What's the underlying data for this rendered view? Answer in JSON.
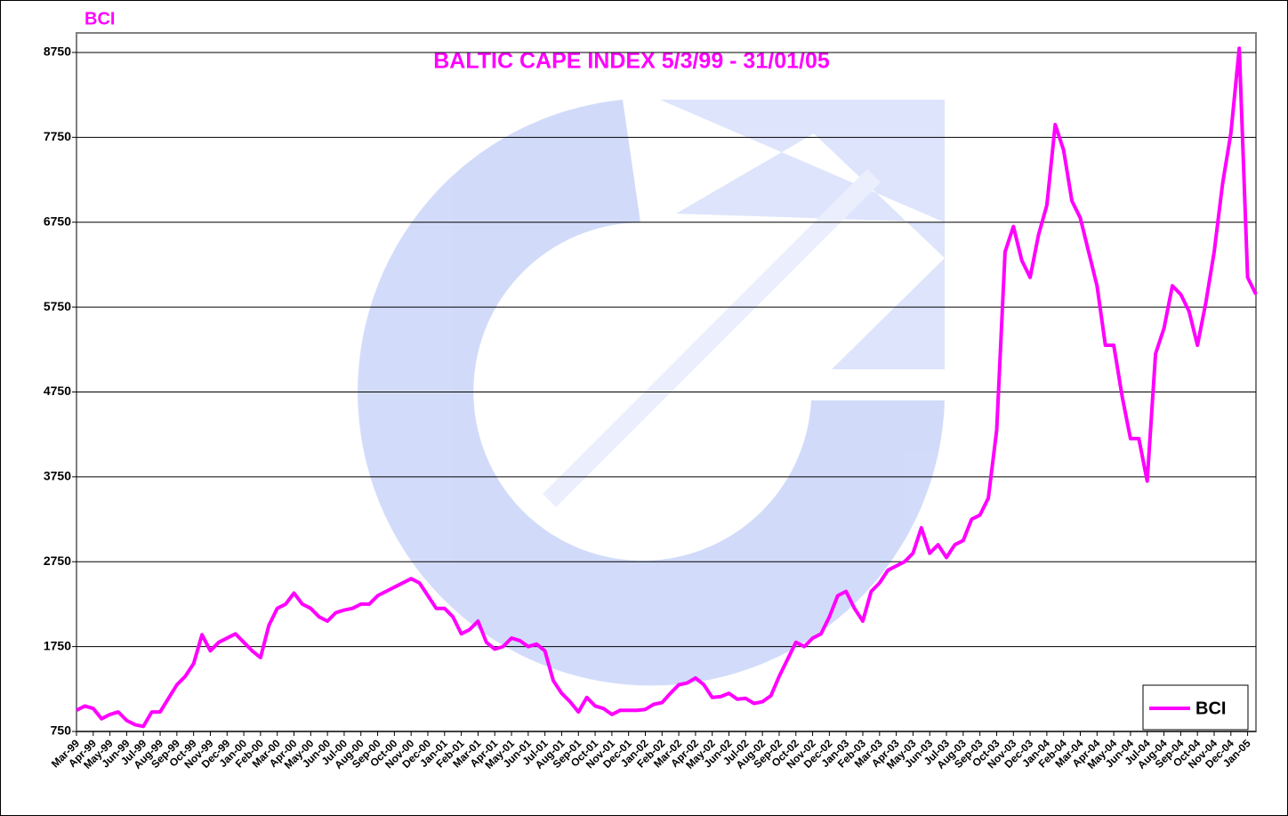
{
  "chart_data": {
    "type": "line",
    "title": "BALTIC CAPE INDEX 5/3/99 - 31/01/05",
    "ylabel": "BCI",
    "categories": [
      "Mar-99",
      null,
      "Apr-99",
      null,
      "May-99",
      null,
      "Jun-99",
      null,
      "Jul-99",
      null,
      "Aug-99",
      null,
      "Sep-99",
      null,
      "Oct-99",
      null,
      "Nov-99",
      null,
      "Dec-99",
      null,
      "Jan-00",
      null,
      "Feb-00",
      null,
      "Mar-00",
      null,
      "Apr-00",
      null,
      "May-00",
      null,
      "Jun-00",
      null,
      "Jul-00",
      null,
      "Aug-00",
      null,
      "Sep-00",
      null,
      "Oct-00",
      null,
      "Nov-00",
      null,
      "Dec-00",
      null,
      "Jan-01",
      null,
      "Feb-01",
      null,
      "Mar-01",
      null,
      "Apr-01",
      null,
      "May-01",
      null,
      "Jun-01",
      null,
      "Jul-01",
      null,
      "Aug-01",
      null,
      "Sep-01",
      null,
      "Oct-01",
      null,
      "Nov-01",
      null,
      "Dec-01",
      null,
      "Jan-02",
      null,
      "Feb-02",
      null,
      "Mar-02",
      null,
      "Apr-02",
      null,
      "May-02",
      null,
      "Jun-02",
      null,
      "Jul-02",
      null,
      "Aug-02",
      null,
      "Sep-02",
      null,
      "Oct-02",
      null,
      "Nov-02",
      null,
      "Dec-02",
      null,
      "Jan-03",
      null,
      "Feb-03",
      null,
      "Mar-03",
      null,
      "Apr-03",
      null,
      "May-03",
      null,
      "Jun-03",
      null,
      "Jul-03",
      null,
      "Aug-03",
      null,
      "Sep-03",
      null,
      "Oct-03",
      null,
      "Nov-03",
      null,
      "Dec-03",
      null,
      "Jan-04",
      null,
      "Feb-04",
      null,
      "Mar-04",
      null,
      "Apr-04",
      null,
      "May-04",
      null,
      "Jun-04",
      null,
      "Jul-04",
      null,
      "Aug-04",
      null,
      "Sep-04",
      null,
      "Oct-04",
      null,
      "Nov-04",
      null,
      "Dec-04",
      null,
      "Jan-05",
      null
    ],
    "series": [
      {
        "name": "BCI",
        "color": "#ff00ff",
        "values": [
          1000,
          1050,
          1020,
          900,
          950,
          980,
          880,
          830,
          810,
          980,
          980,
          1140,
          1300,
          1400,
          1550,
          1890,
          1700,
          1800,
          1850,
          1900,
          1800,
          1700,
          1620,
          2000,
          2200,
          2250,
          2380,
          2250,
          2200,
          2100,
          2050,
          2150,
          2180,
          2200,
          2250,
          2250,
          2350,
          2400,
          2450,
          2500,
          2550,
          2500,
          2350,
          2200,
          2200,
          2100,
          1900,
          1950,
          2050,
          1800,
          1720,
          1750,
          1850,
          1820,
          1750,
          1780,
          1700,
          1350,
          1200,
          1100,
          980,
          1150,
          1050,
          1020,
          950,
          1000,
          1000,
          1000,
          1010,
          1070,
          1090,
          1200,
          1300,
          1320,
          1380,
          1300,
          1150,
          1160,
          1200,
          1130,
          1140,
          1080,
          1100,
          1170,
          1400,
          1600,
          1800,
          1750,
          1850,
          1900,
          2100,
          2350,
          2400,
          2200,
          2050,
          2400,
          2500,
          2650,
          2700,
          2750,
          2850,
          3150,
          2850,
          2950,
          2800,
          2950,
          3000,
          3250,
          3300,
          3500,
          4300,
          6400,
          6700,
          6300,
          6100,
          6600,
          6950,
          7900,
          7600,
          7000,
          6800,
          6400,
          6000,
          5300,
          5300,
          4700,
          4200,
          4200,
          3700,
          5200,
          5500,
          6000,
          5900,
          5700,
          5300,
          5800,
          6400,
          7200,
          7800,
          8800,
          6100,
          5900
        ]
      }
    ],
    "ylim": [
      750,
      8980
    ],
    "yticks": [
      750,
      1750,
      2750,
      3750,
      4750,
      5750,
      6750,
      7750,
      8750
    ],
    "grid": true,
    "legend": "lower right"
  }
}
